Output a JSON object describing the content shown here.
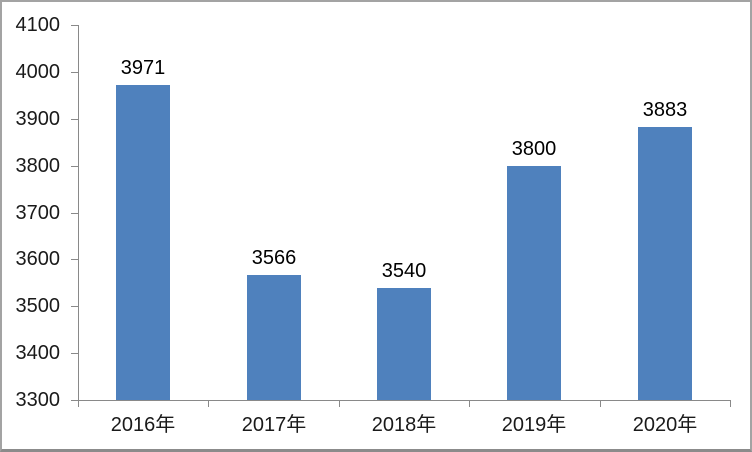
{
  "chart_data": {
    "type": "bar",
    "title": "",
    "xlabel": "",
    "ylabel": "",
    "categories": [
      "2016年",
      "2017年",
      "2018年",
      "2019年",
      "2020年"
    ],
    "values": [
      3971,
      3566,
      3540,
      3800,
      3883
    ],
    "data_labels": [
      "3971",
      "3566",
      "3540",
      "3800",
      "3883"
    ],
    "ylim": [
      3300,
      4100
    ],
    "y_ticks": [
      3300,
      3400,
      3500,
      3600,
      3700,
      3800,
      3900,
      4000,
      4100
    ],
    "grid": false,
    "legend": null,
    "colors": {
      "bar_fill": "#4F81BD",
      "axis_line": "#898989",
      "tick_label_text": "#1a1a1a",
      "data_label_text": "#000000",
      "frame_border": "#a3a3a3",
      "background": "#ffffff"
    }
  }
}
